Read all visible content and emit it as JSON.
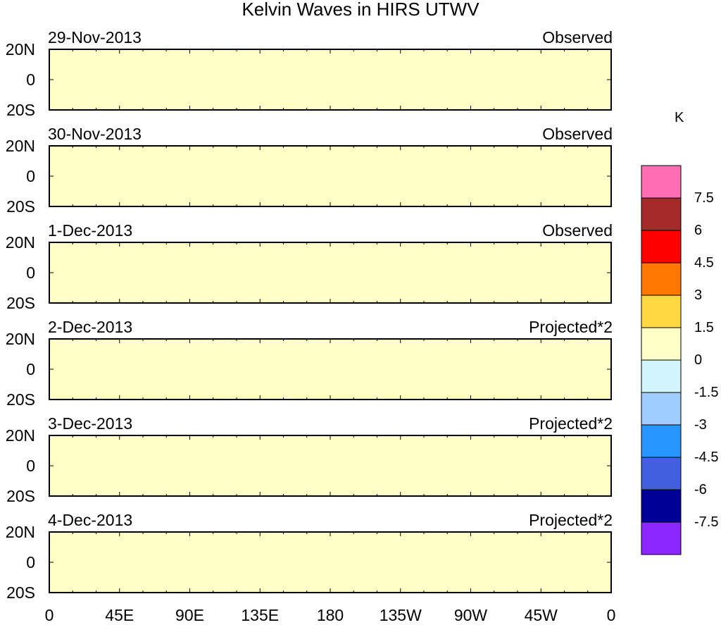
{
  "title": "Kelvin Waves in HIRS UTWV",
  "colorbar": {
    "unit": "K",
    "labels": [
      "7.5",
      "6",
      "4.5",
      "3",
      "1.5",
      "0",
      "-1.5",
      "-3",
      "-4.5",
      "-6",
      "-7.5"
    ],
    "colors": [
      "#ff6eb4",
      "#a52a2a",
      "#ff0000",
      "#ff7800",
      "#ffd740",
      "#ffffc8",
      "#d2f5ff",
      "#a0cdff",
      "#2896ff",
      "#4060e0",
      "#000096",
      "#8c28ff"
    ]
  },
  "lat_labels": [
    "20N",
    "0",
    "20S"
  ],
  "x_labels": [
    "0",
    "45E",
    "90E",
    "135E",
    "180",
    "135W",
    "90W",
    "45W",
    "0"
  ],
  "panels": [
    {
      "date": "29-Nov-2013",
      "type": "Observed"
    },
    {
      "date": "30-Nov-2013",
      "type": "Observed"
    },
    {
      "date": "1-Dec-2013",
      "type": "Observed"
    },
    {
      "date": "2-Dec-2013",
      "type": "Projected*2"
    },
    {
      "date": "3-Dec-2013",
      "type": "Projected*2"
    },
    {
      "date": "4-Dec-2013",
      "type": "Projected*2"
    }
  ]
}
